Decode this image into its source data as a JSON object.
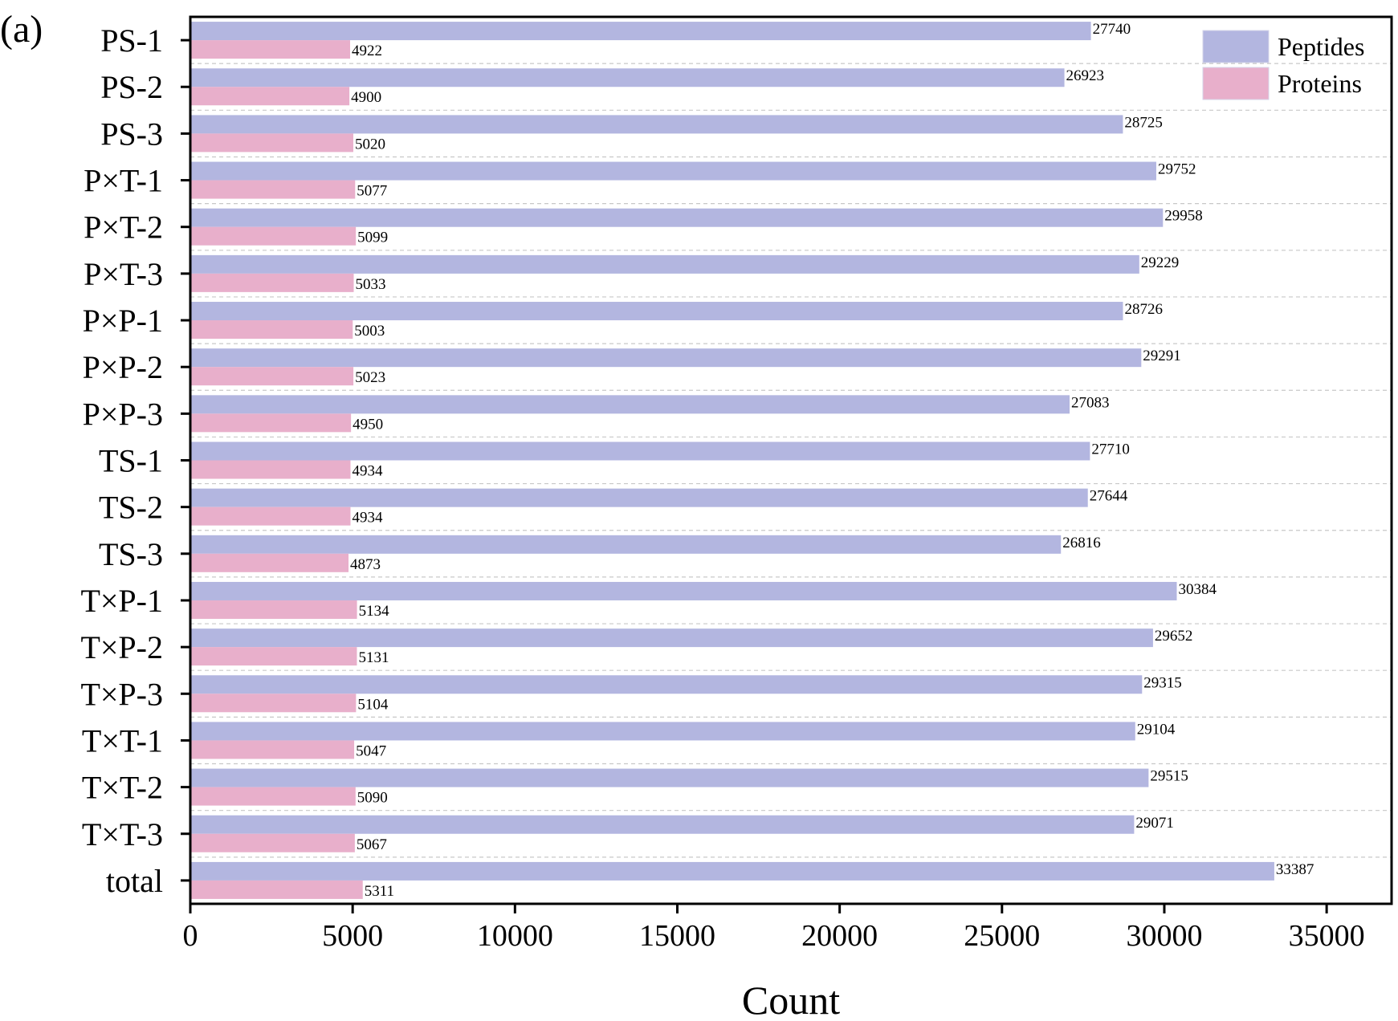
{
  "panel_label": "(a)",
  "chart_data": {
    "type": "bar",
    "orientation": "horizontal",
    "categories": [
      "PS-1",
      "PS-2",
      "PS-3",
      "P×T-1",
      "P×T-2",
      "P×T-3",
      "P×P-1",
      "P×P-2",
      "P×P-3",
      "TS-1",
      "TS-2",
      "TS-3",
      "T×P-1",
      "T×P-2",
      "T×P-3",
      "T×T-1",
      "T×T-2",
      "T×T-3",
      "total"
    ],
    "series": [
      {
        "name": "Peptides",
        "color": "#b3b6e0",
        "values": [
          27740,
          26923,
          28725,
          29752,
          29958,
          29229,
          28726,
          29291,
          27083,
          27710,
          27644,
          26816,
          30384,
          29652,
          29315,
          29104,
          29515,
          29071,
          33387
        ]
      },
      {
        "name": "Proteins",
        "color": "#e8afcb",
        "values": [
          4922,
          4900,
          5020,
          5077,
          5099,
          5033,
          5003,
          5023,
          4950,
          4934,
          4934,
          4873,
          5134,
          5131,
          5104,
          5047,
          5090,
          5067,
          5311
        ]
      }
    ],
    "title": "",
    "xlabel": "Count",
    "ylabel": "",
    "xlim": [
      0,
      37000
    ],
    "xticks": [
      0,
      5000,
      10000,
      15000,
      20000,
      25000,
      30000,
      35000
    ],
    "xtick_labels": [
      "0",
      "5000",
      "10000",
      "15000",
      "20000",
      "25000",
      "30000",
      "35000"
    ],
    "grid": "horizontal dashed separators between categories",
    "legend": {
      "position": "top-right",
      "entries": [
        "Peptides",
        "Proteins"
      ]
    }
  }
}
